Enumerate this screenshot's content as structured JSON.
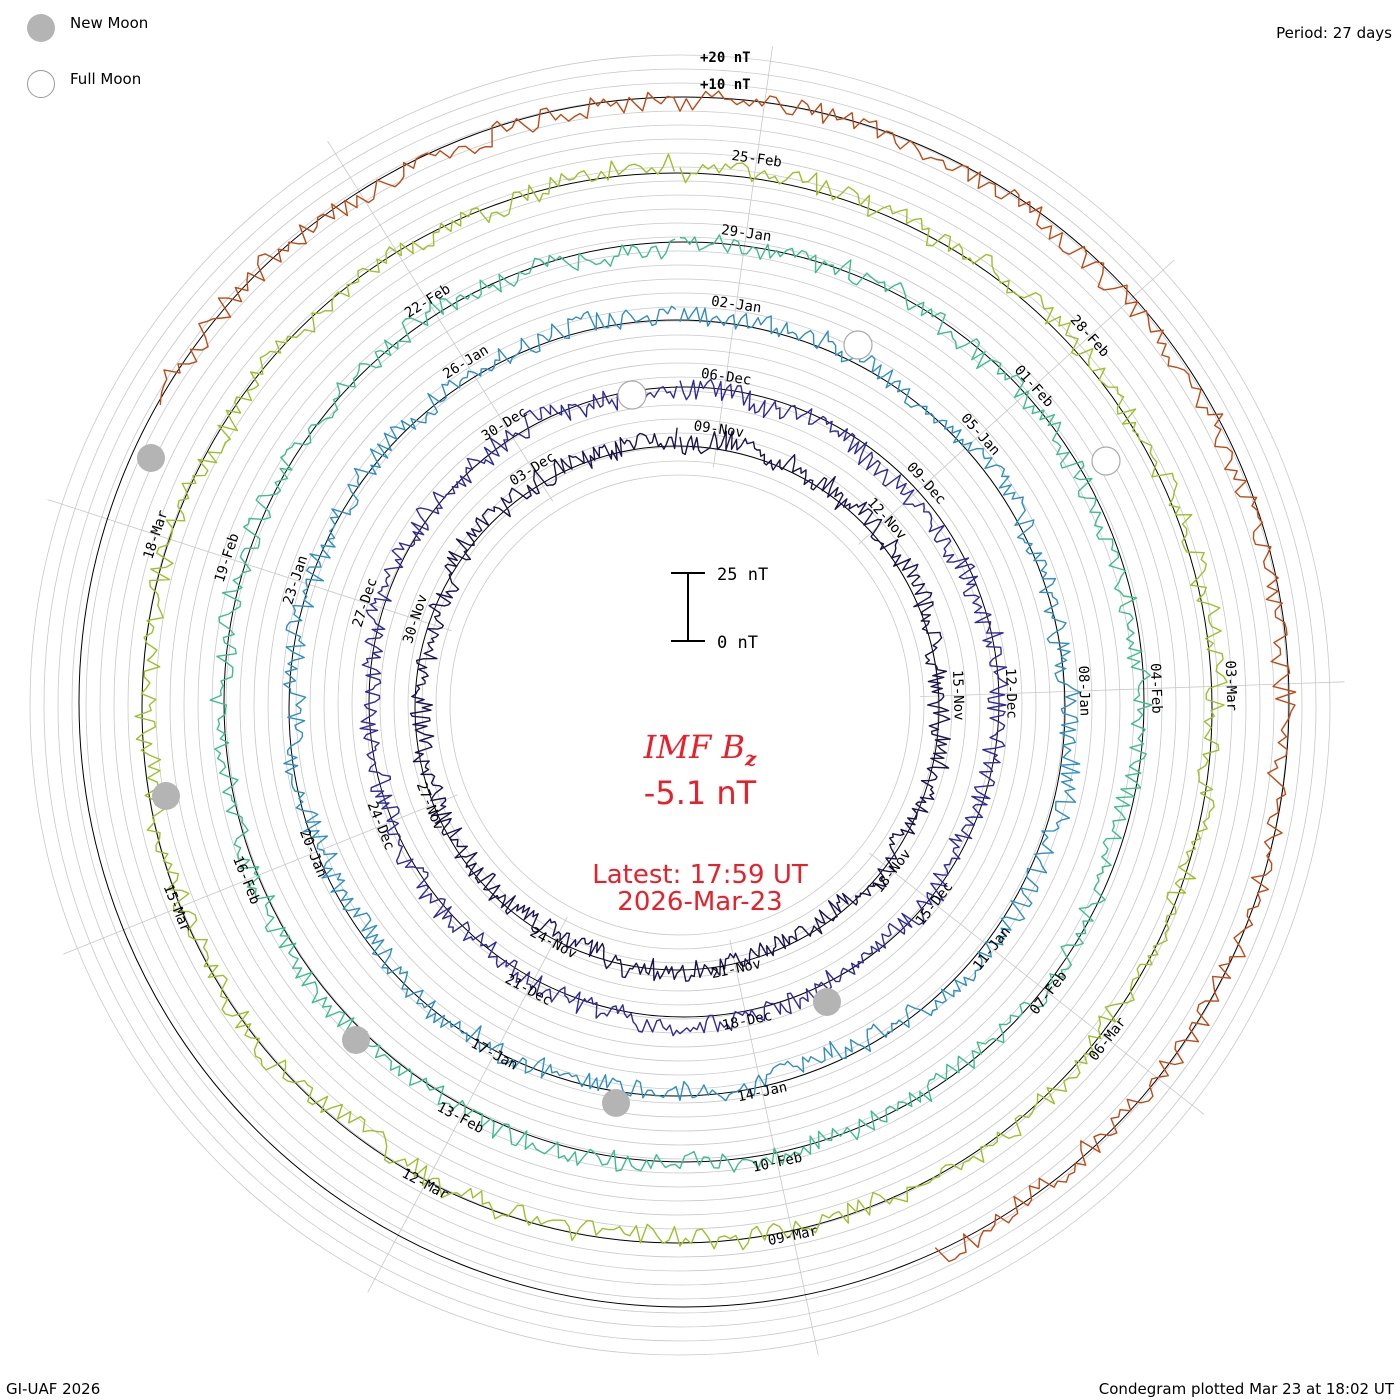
{
  "header": {
    "period": "Period: 27 days"
  },
  "legend": {
    "new_moon": "New Moon",
    "full_moon": "Full Moon",
    "new_moon_color": "#b4b4b4",
    "full_moon_color": "#ffffff"
  },
  "footer": {
    "credit": "GI-UAF 2026",
    "plotted": "Condegram plotted Mar 23 at 18:02 UT"
  },
  "center": {
    "quantity": "IMF B",
    "subscript": "z",
    "value": "-5.1 nT",
    "latest_label": "Latest: 17:59 UT",
    "latest_date": "2026-Mar-23",
    "color": "#e8202a"
  },
  "chart_data": {
    "type": "line",
    "title": "IMF Bz",
    "scale_labels": {
      "outer_20": "+20 nT",
      "outer_10": "+10 nT",
      "bar_top": "25 nT",
      "bar_bottom": "0 nT"
    },
    "series": [
      {
        "color": "#1a1250",
        "date_labels": [
          "09-Nov",
          "12-Nov",
          "15-Nov",
          "18-Nov",
          "21-Nov",
          "24-Nov",
          "27-Nov",
          "30-Nov",
          "03-Dec"
        ]
      },
      {
        "color": "#2e2a9e",
        "date_labels": [
          "06-Dec",
          "09-Dec",
          "12-Dec",
          "15-Dec",
          "18-Dec",
          "21-Dec",
          "24-Dec",
          "27-Dec",
          "30-Dec"
        ]
      },
      {
        "color": "#2f8fc0",
        "date_labels": [
          "02-Jan",
          "05-Jan",
          "08-Jan",
          "11-Jan",
          "14-Jan",
          "17-Jan",
          "20-Jan",
          "23-Jan",
          "26-Jan"
        ]
      },
      {
        "color": "#3cbe8a",
        "date_labels": [
          "29-Jan",
          "01-Feb",
          "04-Feb",
          "07-Feb",
          "10-Feb",
          "13-Feb",
          "16-Feb",
          "19-Feb",
          "22-Feb"
        ]
      },
      {
        "color": "#9cc02a",
        "date_labels": [
          "25-Feb",
          "28-Feb",
          "03-Mar",
          "06-Mar",
          "09-Mar",
          "12-Mar",
          "15-Mar",
          "18-Mar"
        ]
      },
      {
        "color": "#c04a14",
        "date_labels": []
      }
    ],
    "new_moon_markers": [
      "New Moon"
    ],
    "full_moon_markers": [
      "Full Moon"
    ],
    "grid": true
  }
}
